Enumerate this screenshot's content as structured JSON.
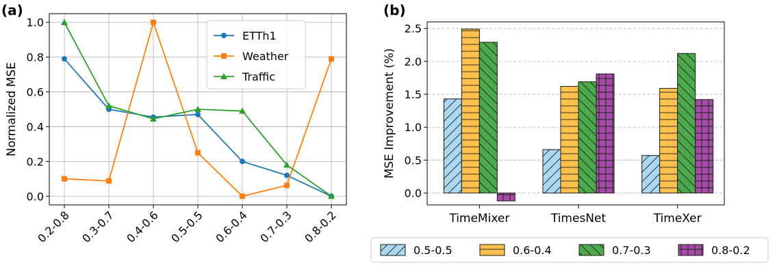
{
  "chart_data": [
    {
      "type": "line",
      "panel_label": "(a)",
      "ylabel": "Normalized MSE",
      "xlabel": "",
      "categories": [
        "0.2-0.8",
        "0.3-0.7",
        "0.4-0.6",
        "0.5-0.5",
        "0.6-0.4",
        "0.7-0.3",
        "0.8-0.2"
      ],
      "ylim": [
        -0.05,
        1.05
      ],
      "yticks": [
        "0.0",
        "0.2",
        "0.4",
        "0.6",
        "0.8",
        "1.0"
      ],
      "grid": true,
      "legend_position": "top-right",
      "series": [
        {
          "name": "ETTh1",
          "color": "#1f77b4",
          "marker": "circle",
          "values": [
            0.79,
            0.5,
            0.455,
            0.47,
            0.2,
            0.12,
            0.0
          ]
        },
        {
          "name": "Weather",
          "color": "#ff7f0e",
          "marker": "square",
          "values": [
            0.1,
            0.088,
            1.0,
            0.25,
            0.0,
            0.062,
            0.79
          ]
        },
        {
          "name": "Traffic",
          "color": "#2ca02c",
          "marker": "triangle",
          "values": [
            1.0,
            0.52,
            0.445,
            0.5,
            0.49,
            0.18,
            0.0
          ]
        }
      ]
    },
    {
      "type": "bar",
      "panel_label": "(b)",
      "ylabel": "MSE Improvement (%)",
      "xlabel": "",
      "categories": [
        "TimeMixer",
        "TimesNet",
        "TimeXer"
      ],
      "ylim": [
        -0.18,
        2.6
      ],
      "yticks": [
        "0.0",
        "0.5",
        "1.0",
        "1.5",
        "2.0",
        "2.5"
      ],
      "grid": true,
      "legend_position": "bottom-outside",
      "series": [
        {
          "name": "0.5-0.5",
          "color": "#aad8f0",
          "hatch": "diagonal",
          "values": [
            1.43,
            0.66,
            0.57
          ]
        },
        {
          "name": "0.6-0.4",
          "color": "#ffc04d",
          "hatch": "horizontal",
          "values": [
            2.49,
            1.62,
            1.59
          ]
        },
        {
          "name": "0.7-0.3",
          "color": "#4caa4c",
          "hatch": "backslash",
          "values": [
            2.29,
            1.69,
            2.12
          ]
        },
        {
          "name": "0.8-0.2",
          "color": "#a64ca6",
          "hatch": "grid",
          "values": [
            -0.12,
            1.81,
            1.42
          ]
        }
      ]
    }
  ]
}
